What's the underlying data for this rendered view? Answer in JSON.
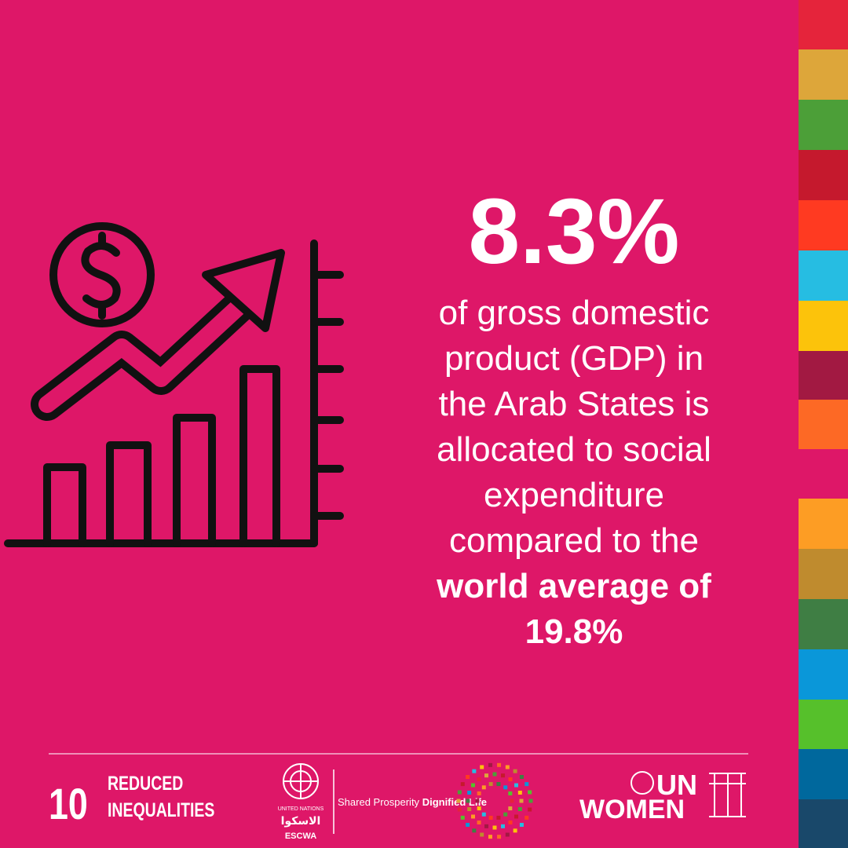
{
  "headline": "8.3%",
  "body": {
    "text_lines": [
      "of gross domestic",
      "product (GDP) in",
      "the Arab States is",
      "allocated to social",
      "expenditure",
      "compared to the"
    ],
    "emphasis_lines": [
      "world average of",
      "19.8%"
    ]
  },
  "footer": {
    "goal_number": "10",
    "goal_title": [
      "REDUCED",
      "INEQUALITIES"
    ],
    "escwa": {
      "un": "UNITED NATIONS",
      "arabic": "الاسكوا",
      "name": "ESCWA"
    },
    "slogan": {
      "regular": "Shared Prosperity",
      "bold": "Dignified Life"
    },
    "un_women": [
      "UN",
      "WOMEN"
    ]
  }
}
